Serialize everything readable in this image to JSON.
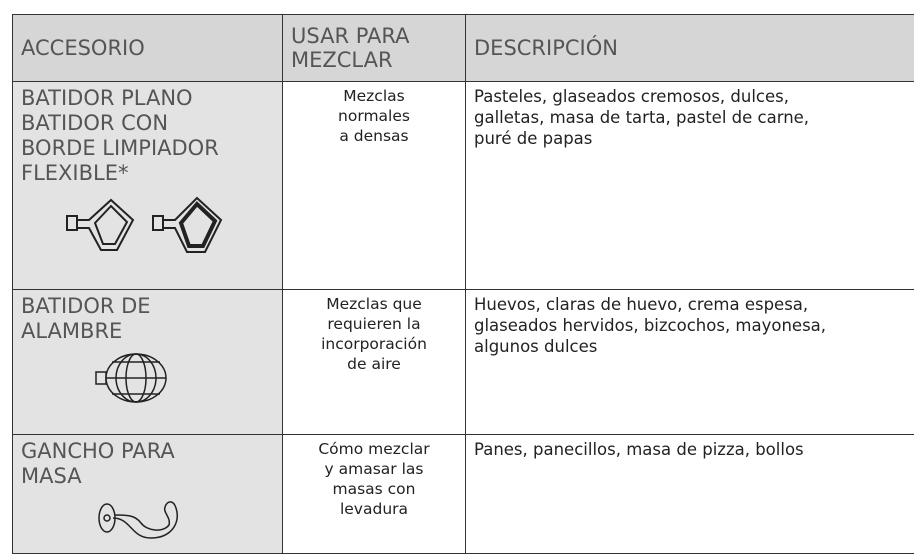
{
  "table": {
    "header": [
      [
        "ACCESORIO"
      ],
      [
        "USAR PARA",
        "MEZCLAR"
      ],
      [
        "DESCRIPCIÓN"
      ]
    ],
    "rows": [
      {
        "accessory": [
          "BATIDOR PLANO",
          "BATIDOR CON",
          "BORDE LIMPIADOR",
          "FLEXIBLE*"
        ],
        "use": [
          "Mezclas",
          "normales",
          "a densas"
        ],
        "description": [
          "Pasteles, glaseados cremosos, dulces,",
          "galletas, masa de tarta, pastel de carne,",
          "puré de papas"
        ]
      },
      {
        "accessory": [
          "BATIDOR DE",
          "ALAMBRE"
        ],
        "use": [
          "Mezclas que",
          "requieren la",
          "incorporación",
          "de aire"
        ],
        "description": [
          "Huevos, claras de huevo, crema espesa,",
          "glaseados hervidos, bizcochos, mayonesa,",
          "algunos dulces"
        ]
      },
      {
        "accessory": [
          "GANCHO PARA",
          "MASA"
        ],
        "use": [
          "Cómo mezclar",
          "y amasar las",
          "masas con",
          "levadura"
        ],
        "description": [
          "Panes, panecillos, masa de pizza, bollos"
        ]
      }
    ]
  }
}
